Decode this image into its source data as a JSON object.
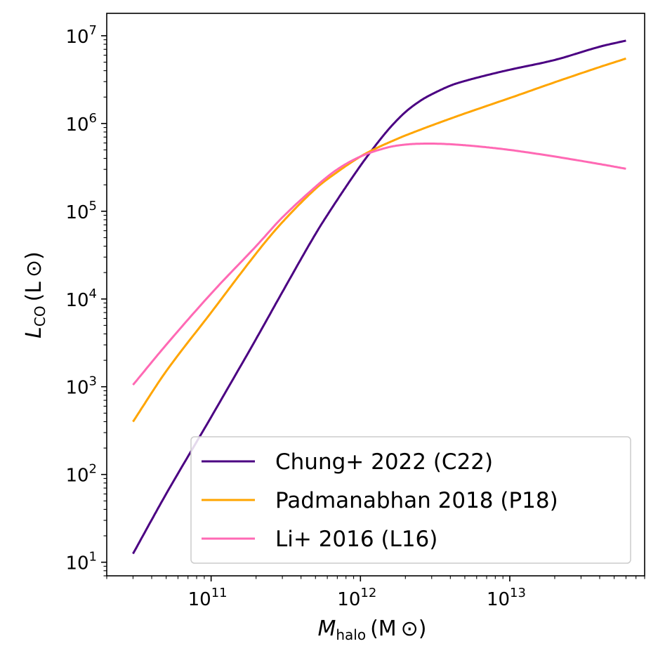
{
  "chart_data": {
    "type": "line",
    "xscale": "log",
    "yscale": "log",
    "xlim": [
      20000000000.0,
      80000000000000.0
    ],
    "ylim": [
      7,
      18000000.0
    ],
    "xlabel": {
      "main": "M",
      "sub": "halo",
      "unit": "(M ⊙)"
    },
    "ylabel": {
      "main": "L",
      "sub": "CO",
      "unit": "(L ⊙)"
    },
    "x_ticks": [
      {
        "base": "10",
        "exp": "11",
        "value": 100000000000.0
      },
      {
        "base": "10",
        "exp": "12",
        "value": 1000000000000.0
      },
      {
        "base": "10",
        "exp": "13",
        "value": 10000000000000.0
      }
    ],
    "y_ticks": [
      {
        "base": "10",
        "exp": "1",
        "value": 10.0
      },
      {
        "base": "10",
        "exp": "2",
        "value": 100.0
      },
      {
        "base": "10",
        "exp": "3",
        "value": 1000.0
      },
      {
        "base": "10",
        "exp": "4",
        "value": 10000.0
      },
      {
        "base": "10",
        "exp": "5",
        "value": 100000.0
      },
      {
        "base": "10",
        "exp": "6",
        "value": 1000000.0
      },
      {
        "base": "10",
        "exp": "7",
        "value": 10000000.0
      }
    ],
    "legend_position": "lower-right",
    "series": [
      {
        "name": "Chung+ 2022 (C22)",
        "color": "#4b0082",
        "x": [
          30000000000.0,
          50000000000.0,
          100000000000.0,
          200000000000.0,
          300000000000.0,
          500000000000.0,
          700000000000.0,
          1000000000000.0,
          1300000000000.0,
          1600000000000.0,
          2000000000000.0,
          2500000000000.0,
          3000000000000.0,
          4000000000000.0,
          5000000000000.0,
          7000000000000.0,
          10000000000000.0,
          20000000000000.0,
          40000000000000.0,
          60000000000000.0
        ],
        "y": [
          12.5,
          60,
          450,
          3500,
          12000,
          55000,
          135000,
          330000,
          600000,
          920000,
          1350000,
          1800000,
          2150000,
          2700000,
          3050000,
          3550000,
          4100000,
          5300000,
          7500000,
          8800000
        ]
      },
      {
        "name": "Padmanabhan 2018 (P18)",
        "color": "#ffa500",
        "x": [
          30000000000.0,
          50000000000.0,
          100000000000.0,
          200000000000.0,
          300000000000.0,
          500000000000.0,
          700000000000.0,
          1000000000000.0,
          1300000000000.0,
          1700000000000.0,
          2000000000000.0,
          3000000000000.0,
          5000000000000.0,
          10000000000000.0,
          20000000000000.0,
          40000000000000.0,
          60000000000000.0
        ],
        "y": [
          400,
          1500,
          7000,
          33000,
          75000,
          180000,
          280000,
          420000,
          530000,
          650000,
          730000,
          950000,
          1300000,
          1950000,
          2950000,
          4400000,
          5500000
        ]
      },
      {
        "name": "Li+ 2016 (L16)",
        "color": "#ff69b4",
        "x": [
          30000000000.0,
          50000000000.0,
          100000000000.0,
          200000000000.0,
          300000000000.0,
          500000000000.0,
          700000000000.0,
          1000000000000.0,
          1500000000000.0,
          2000000000000.0,
          2800000000000.0,
          4000000000000.0,
          6000000000000.0,
          10000000000000.0,
          20000000000000.0,
          40000000000000.0,
          60000000000000.0
        ],
        "y": [
          1050,
          3000,
          11500,
          40000,
          85000,
          190000,
          300000,
          420000,
          530000,
          575000,
          590000,
          580000,
          550000,
          500000,
          420000,
          345000,
          305000
        ]
      }
    ]
  }
}
